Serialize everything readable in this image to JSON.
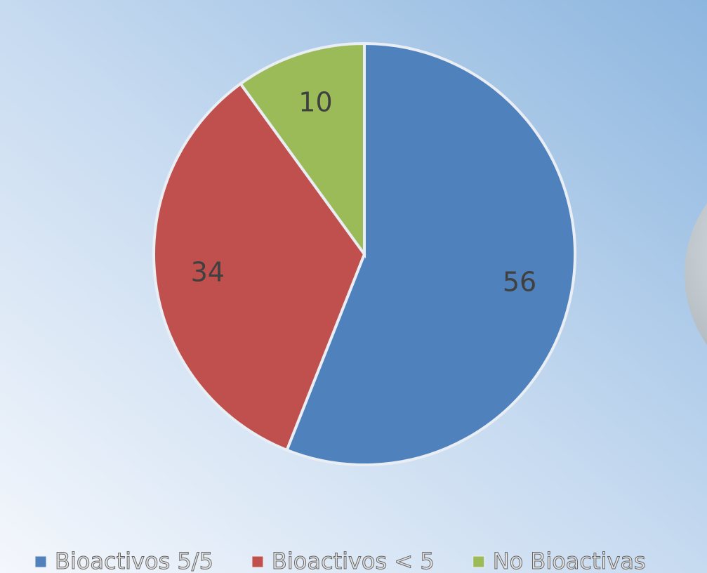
{
  "chart_data": {
    "type": "pie",
    "categories": [
      "Bioactivos 5/5",
      "Bioactivos < 5",
      "No Bioactivas"
    ],
    "values": [
      56,
      34,
      10
    ],
    "colors": [
      "#4f81bd",
      "#c0504d",
      "#9bbb59"
    ],
    "legend": "bottom"
  }
}
